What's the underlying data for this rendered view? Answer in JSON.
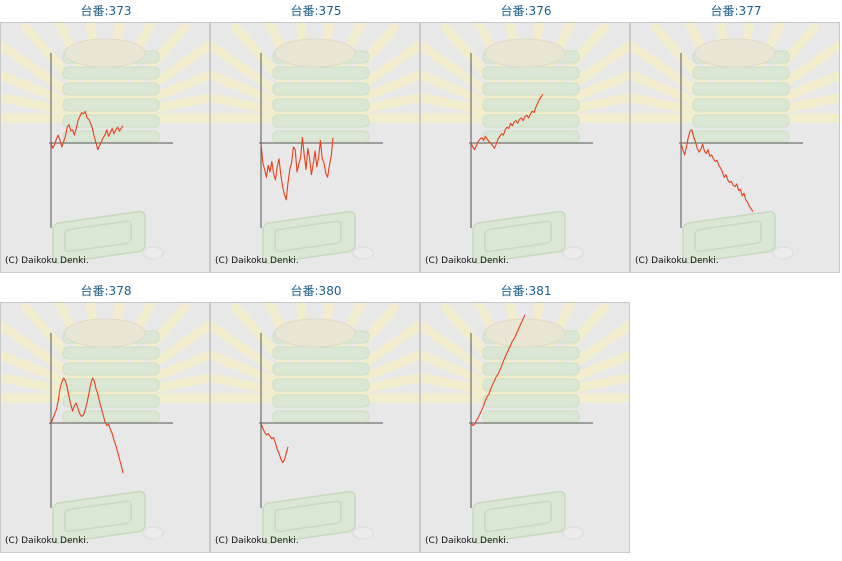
{
  "copyright": "(C) Daikoku Denki.",
  "colors": {
    "line": "#e8401c",
    "axis": "#555555",
    "title": "#1f5f8f",
    "panel_bg": "#e8e8e8"
  },
  "chart_data": [
    {
      "type": "line",
      "title": "台番:373",
      "x": [
        0,
        1,
        2,
        3,
        4,
        5,
        6,
        7,
        8,
        9,
        10,
        11,
        12,
        13,
        14,
        15,
        16,
        17,
        18,
        19,
        20,
        21,
        22,
        23,
        24,
        25,
        26,
        27,
        28,
        29,
        30,
        31,
        32,
        33,
        34,
        35,
        36,
        37,
        38,
        39,
        40
      ],
      "y": [
        0,
        -8,
        -2,
        6,
        12,
        4,
        -6,
        2,
        10,
        24,
        28,
        18,
        20,
        12,
        22,
        34,
        40,
        46,
        44,
        48,
        38,
        36,
        30,
        22,
        10,
        0,
        -10,
        -4,
        2,
        8,
        12,
        20,
        10,
        16,
        22,
        14,
        20,
        24,
        18,
        22,
        26
      ]
    },
    {
      "type": "line",
      "title": "台番:375",
      "x": [
        0,
        1,
        2,
        3,
        4,
        5,
        6,
        7,
        8,
        9,
        10,
        11,
        12,
        13,
        14,
        15,
        16,
        17,
        18,
        19,
        20,
        21,
        22,
        23,
        24,
        25,
        26,
        27,
        28,
        29,
        30,
        31,
        32,
        33,
        34,
        35,
        36,
        37,
        38,
        39,
        40
      ],
      "y": [
        0,
        -30,
        -40,
        -52,
        -34,
        -44,
        -28,
        -46,
        -56,
        -36,
        -24,
        -48,
        -66,
        -78,
        -86,
        -60,
        -40,
        -30,
        -6,
        -10,
        -44,
        -32,
        -22,
        8,
        -18,
        -40,
        -8,
        -24,
        -48,
        -32,
        -12,
        -36,
        -22,
        4,
        -24,
        -30,
        -46,
        -52,
        -34,
        -20,
        8
      ]
    },
    {
      "type": "line",
      "title": "台番:376",
      "x": [
        0,
        2,
        4,
        6,
        8,
        10,
        12,
        14,
        16,
        18,
        20,
        22,
        24,
        26,
        28,
        30,
        32,
        34,
        36,
        38,
        40,
        42,
        44,
        46,
        48,
        50,
        52,
        54,
        56,
        58,
        60,
        62,
        64,
        66,
        68,
        70,
        72,
        74,
        76,
        78,
        80
      ],
      "y": [
        0,
        -6,
        -10,
        -4,
        2,
        6,
        8,
        4,
        10,
        6,
        2,
        0,
        -4,
        -8,
        -2,
        6,
        10,
        14,
        12,
        20,
        24,
        22,
        30,
        26,
        32,
        34,
        30,
        36,
        38,
        34,
        40,
        42,
        38,
        44,
        48,
        46,
        54,
        60,
        66,
        70,
        74
      ]
    },
    {
      "type": "line",
      "title": "台番:377",
      "x": [
        0,
        1,
        2,
        3,
        4,
        5,
        6,
        7,
        8,
        9,
        10,
        11,
        12,
        13,
        14,
        15,
        16,
        17,
        18,
        19,
        20,
        21,
        22,
        23,
        24,
        25,
        26,
        27,
        28,
        29,
        30,
        31,
        32,
        33,
        34,
        35,
        36,
        37,
        38,
        39,
        40
      ],
      "y": [
        0,
        -10,
        -18,
        -6,
        8,
        18,
        20,
        10,
        2,
        -8,
        -14,
        -10,
        -2,
        -12,
        -16,
        -10,
        -20,
        -18,
        -24,
        -28,
        -26,
        -34,
        -38,
        -44,
        -52,
        -48,
        -56,
        -60,
        -58,
        -64,
        -66,
        -62,
        -72,
        -70,
        -80,
        -76,
        -86,
        -90,
        -96,
        -100,
        -104
      ]
    },
    {
      "type": "line",
      "title": "台番:378",
      "x": [
        0,
        1,
        2,
        3,
        4,
        5,
        6,
        7,
        8,
        9,
        10,
        11,
        12,
        13,
        14,
        15,
        16,
        17,
        18,
        19,
        20,
        21,
        22,
        23,
        24,
        25,
        26,
        27,
        28,
        29,
        30,
        31,
        32,
        33,
        34,
        35,
        36,
        37,
        38,
        39,
        40
      ],
      "y": [
        0,
        6,
        14,
        20,
        34,
        52,
        62,
        68,
        64,
        54,
        40,
        28,
        18,
        26,
        30,
        22,
        14,
        10,
        12,
        20,
        30,
        44,
        58,
        68,
        64,
        52,
        44,
        32,
        22,
        12,
        2,
        -4,
        -2,
        -10,
        -16,
        -26,
        -34,
        -44,
        -54,
        -64,
        -76
      ]
    },
    {
      "type": "line",
      "title": "台番:380",
      "x": [
        0,
        1,
        2,
        3,
        4,
        5,
        6,
        7,
        8,
        9,
        10,
        11,
        12,
        13,
        14,
        15
      ],
      "y": [
        0,
        -8,
        -14,
        -18,
        -16,
        -20,
        -24,
        -22,
        -30,
        -40,
        -46,
        -54,
        -60,
        -56,
        -46,
        -36
      ]
    },
    {
      "type": "line",
      "title": "台番:381",
      "x": [
        0,
        1,
        2,
        3,
        4,
        5,
        6,
        7,
        8,
        9,
        10,
        11,
        12,
        13,
        14,
        15,
        16,
        17,
        18,
        19,
        20,
        21,
        22,
        23,
        24,
        25,
        26,
        27,
        28,
        29,
        30
      ],
      "y": [
        0,
        -4,
        -2,
        4,
        8,
        14,
        20,
        26,
        34,
        40,
        44,
        52,
        58,
        64,
        70,
        74,
        80,
        86,
        94,
        100,
        106,
        112,
        118,
        124,
        128,
        134,
        140,
        146,
        152,
        158,
        164
      ]
    }
  ]
}
